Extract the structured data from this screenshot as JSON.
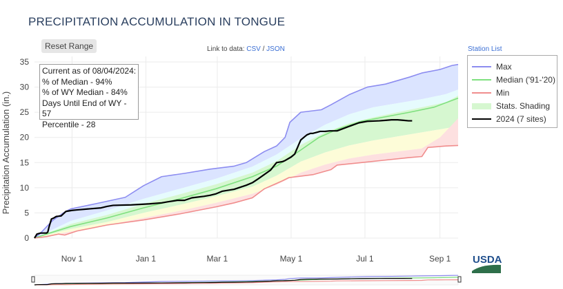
{
  "header": {
    "title": "PRECIPITATION ACCUMULATION IN TONGUE",
    "reset_label": "Reset Range",
    "link_prefix": "Link to data:",
    "csv_label": "CSV",
    "link_sep": "/",
    "json_label": "JSON",
    "station_list_label": "Station List"
  },
  "infobox": {
    "lines": [
      "Current as of 08/04/2024:",
      "% of Median - 94%",
      "% of WY Median - 84%",
      "Days Until End of WY - 57",
      "Percentile - 28"
    ]
  },
  "legend": {
    "max": "Max",
    "median": "Median ('91-'20)",
    "min": "Min",
    "shading": "Stats. Shading",
    "current": "2024 (7 sites)"
  },
  "logo_text": "USDA",
  "colors": {
    "max": "#8c8cf0",
    "median": "#7ee07e",
    "min": "#f08c8c",
    "current": "#000000",
    "band_max": "#dbe4ff",
    "band_upper": "#e6fbfd",
    "band_mid": "#d6f7d0",
    "band_lower": "#fdfcd8",
    "band_min": "#fde0e0",
    "grid": "#ebebeb",
    "usda_green": "#2e6f4a",
    "usda_blue": "#1f4e8c"
  },
  "chart_data": {
    "type": "area",
    "ylabel": "Precipitation Accumulation (in.)",
    "xlabel": "",
    "x_unit": "day of water year (0 = Oct 1)",
    "xlim": [
      0,
      350
    ],
    "ylim": [
      0,
      35
    ],
    "y_ticks": [
      0,
      5,
      10,
      15,
      20,
      25,
      30,
      35
    ],
    "x_ticks": [
      {
        "day": 31,
        "label": "Nov  1"
      },
      {
        "day": 92,
        "label": "Jan  1"
      },
      {
        "day": 151,
        "label": "Mar  1"
      },
      {
        "day": 212,
        "label": "May  1"
      },
      {
        "day": 273,
        "label": "Jul  1"
      },
      {
        "day": 335,
        "label": "Sep  1"
      }
    ],
    "grid": true,
    "legend_position": "right",
    "series": [
      {
        "name": "Max",
        "x": [
          0,
          5,
          15,
          25,
          30,
          50,
          75,
          90,
          105,
          125,
          145,
          165,
          175,
          190,
          200,
          207,
          211,
          220,
          237,
          245,
          260,
          275,
          290,
          310,
          320,
          335,
          345,
          350
        ],
        "y": [
          0,
          1,
          3.5,
          5.2,
          5.8,
          6.8,
          8.1,
          10.4,
          12.2,
          12.9,
          13.7,
          14.3,
          15,
          17.2,
          18.3,
          20,
          23,
          25,
          25.5,
          26.5,
          28.5,
          30,
          30.6,
          32,
          32.8,
          33.5,
          34.3,
          34.5
        ]
      },
      {
        "name": "Median ('91-'20)",
        "x": [
          0,
          10,
          30,
          60,
          90,
          120,
          150,
          180,
          200,
          220,
          235,
          250,
          270,
          290,
          310,
          330,
          350
        ],
        "y": [
          0,
          0.8,
          2.3,
          4,
          6,
          7.8,
          9.8,
          12.2,
          14.3,
          17.5,
          20,
          21.6,
          23.2,
          24.1,
          25,
          26,
          27.8
        ]
      },
      {
        "name": "Min",
        "x": [
          0,
          10,
          20,
          25,
          35,
          60,
          90,
          120,
          150,
          165,
          180,
          190,
          205,
          210,
          230,
          245,
          250,
          270,
          290,
          310,
          320,
          325,
          340,
          350
        ],
        "y": [
          0,
          0.3,
          0.8,
          0.6,
          1.4,
          2.6,
          3.6,
          4.8,
          6.2,
          7,
          8,
          9.8,
          11.4,
          12,
          12.6,
          13.6,
          14.5,
          15,
          15.5,
          16,
          16.2,
          18,
          18.3,
          18.4
        ]
      },
      {
        "name": "2024 (7 sites)",
        "x": [
          0,
          2,
          5,
          10,
          11,
          12,
          14,
          16,
          18,
          22,
          26,
          31,
          35,
          45,
          55,
          60,
          65,
          80,
          95,
          105,
          110,
          118,
          124,
          130,
          140,
          145,
          150,
          155,
          165,
          175,
          180,
          185,
          195,
          200,
          205,
          207,
          212,
          215,
          218,
          220,
          225,
          228,
          230,
          233,
          236,
          240,
          244,
          250,
          260,
          268,
          275,
          285,
          290,
          295,
          300,
          305,
          309,
          312
        ],
        "y": [
          0,
          0.8,
          1,
          1,
          1.2,
          2.2,
          3.8,
          4,
          4.3,
          4.4,
          5.3,
          5.5,
          5.6,
          5.8,
          6,
          6.3,
          6.5,
          6.6,
          6.8,
          7,
          7.2,
          7.5,
          7.5,
          8,
          8.3,
          8.5,
          8.8,
          9.3,
          9.7,
          10.5,
          11,
          11.8,
          13.5,
          15,
          15.2,
          15.4,
          16.1,
          16.7,
          18.4,
          19.5,
          20.5,
          20.8,
          20.8,
          21,
          21.2,
          21.2,
          21.3,
          21.3,
          22.2,
          22.9,
          23.2,
          23.3,
          23.4,
          23.5,
          23.5,
          23.4,
          23.3,
          23.3
        ]
      }
    ],
    "shading_bands": [
      {
        "name": "max band",
        "upper": [
          [
            0,
            0
          ],
          [
            5,
            1
          ],
          [
            15,
            3.5
          ],
          [
            25,
            5.2
          ],
          [
            30,
            5.8
          ],
          [
            50,
            6.8
          ],
          [
            75,
            8.1
          ],
          [
            90,
            10.4
          ],
          [
            105,
            12.2
          ],
          [
            125,
            12.9
          ],
          [
            145,
            13.7
          ],
          [
            165,
            14.3
          ],
          [
            175,
            15
          ],
          [
            190,
            17.2
          ],
          [
            200,
            18.3
          ],
          [
            207,
            20
          ],
          [
            211,
            23
          ],
          [
            220,
            25
          ],
          [
            237,
            25.5
          ],
          [
            245,
            26.5
          ],
          [
            260,
            28.5
          ],
          [
            275,
            30
          ],
          [
            290,
            30.6
          ],
          [
            310,
            32
          ],
          [
            320,
            32.8
          ],
          [
            335,
            33.5
          ],
          [
            345,
            34.3
          ],
          [
            350,
            34.5
          ]
        ],
        "lower": [
          [
            0,
            0
          ],
          [
            30,
            3.4
          ],
          [
            60,
            5.5
          ],
          [
            90,
            7.8
          ],
          [
            120,
            9.8
          ],
          [
            150,
            11.8
          ],
          [
            180,
            14.2
          ],
          [
            200,
            16.6
          ],
          [
            220,
            19.8
          ],
          [
            240,
            22.5
          ],
          [
            260,
            24.6
          ],
          [
            280,
            26
          ],
          [
            300,
            26.8
          ],
          [
            320,
            27.6
          ],
          [
            340,
            28.6
          ],
          [
            350,
            29.5
          ]
        ]
      },
      {
        "name": "upper band",
        "upper": [
          [
            0,
            0
          ],
          [
            30,
            3.4
          ],
          [
            60,
            5.5
          ],
          [
            90,
            7.8
          ],
          [
            120,
            9.8
          ],
          [
            150,
            11.8
          ],
          [
            180,
            14.2
          ],
          [
            200,
            16.6
          ],
          [
            220,
            19.8
          ],
          [
            240,
            22.5
          ],
          [
            260,
            24.6
          ],
          [
            280,
            26
          ],
          [
            300,
            26.8
          ],
          [
            320,
            27.6
          ],
          [
            340,
            28.6
          ],
          [
            350,
            29.5
          ]
        ],
        "lower": [
          [
            0,
            0
          ],
          [
            30,
            2.8
          ],
          [
            60,
            4.6
          ],
          [
            90,
            6.8
          ],
          [
            120,
            8.7
          ],
          [
            150,
            10.7
          ],
          [
            180,
            13
          ],
          [
            200,
            15.3
          ],
          [
            220,
            18.5
          ],
          [
            240,
            21
          ],
          [
            260,
            22.8
          ],
          [
            280,
            24
          ],
          [
            300,
            25
          ],
          [
            320,
            26
          ],
          [
            340,
            27
          ],
          [
            350,
            28.3
          ]
        ]
      },
      {
        "name": "mid band",
        "upper": [
          [
            0,
            0
          ],
          [
            30,
            2.8
          ],
          [
            60,
            4.6
          ],
          [
            90,
            6.8
          ],
          [
            120,
            8.7
          ],
          [
            150,
            10.7
          ],
          [
            180,
            13
          ],
          [
            200,
            15.3
          ],
          [
            220,
            18.5
          ],
          [
            240,
            21
          ],
          [
            260,
            22.8
          ],
          [
            280,
            24
          ],
          [
            300,
            25
          ],
          [
            320,
            26
          ],
          [
            340,
            27
          ],
          [
            350,
            28.3
          ]
        ],
        "lower": [
          [
            0,
            0
          ],
          [
            30,
            1.8
          ],
          [
            60,
            3.2
          ],
          [
            90,
            5
          ],
          [
            120,
            6.6
          ],
          [
            150,
            8.3
          ],
          [
            180,
            10.2
          ],
          [
            200,
            12.4
          ],
          [
            220,
            15.2
          ],
          [
            240,
            17
          ],
          [
            260,
            18.4
          ],
          [
            280,
            19.4
          ],
          [
            300,
            20.2
          ],
          [
            320,
            21
          ],
          [
            340,
            21.8
          ],
          [
            350,
            22.2
          ]
        ]
      },
      {
        "name": "lower band",
        "upper": [
          [
            0,
            0
          ],
          [
            30,
            1.8
          ],
          [
            60,
            3.2
          ],
          [
            90,
            5
          ],
          [
            120,
            6.6
          ],
          [
            150,
            8.3
          ],
          [
            180,
            10.2
          ],
          [
            200,
            12.4
          ],
          [
            220,
            15.2
          ],
          [
            240,
            17
          ],
          [
            260,
            18.4
          ],
          [
            280,
            19.4
          ],
          [
            300,
            20.2
          ],
          [
            320,
            21
          ],
          [
            340,
            21.8
          ],
          [
            350,
            22.2
          ]
        ],
        "lower": [
          [
            0,
            0
          ],
          [
            30,
            1.3
          ],
          [
            60,
            2.6
          ],
          [
            90,
            4
          ],
          [
            120,
            5.4
          ],
          [
            150,
            7
          ],
          [
            180,
            8.8
          ],
          [
            200,
            10.6
          ],
          [
            220,
            13
          ],
          [
            240,
            14.6
          ],
          [
            260,
            15.8
          ],
          [
            280,
            16.6
          ],
          [
            300,
            17.2
          ],
          [
            320,
            17.8
          ],
          [
            340,
            18.4
          ],
          [
            350,
            19
          ]
        ]
      },
      {
        "name": "min band",
        "upper": [
          [
            0,
            0
          ],
          [
            30,
            1.3
          ],
          [
            60,
            2.6
          ],
          [
            90,
            4
          ],
          [
            120,
            5.4
          ],
          [
            150,
            7
          ],
          [
            180,
            8.8
          ],
          [
            200,
            10.6
          ],
          [
            220,
            13
          ],
          [
            240,
            14.6
          ],
          [
            260,
            15.8
          ],
          [
            280,
            16.6
          ],
          [
            300,
            17.2
          ],
          [
            320,
            17.8
          ],
          [
            335,
            20
          ],
          [
            345,
            22.5
          ],
          [
            350,
            23.8
          ]
        ],
        "lower": [
          [
            0,
            0
          ],
          [
            10,
            0.3
          ],
          [
            20,
            0.8
          ],
          [
            25,
            0.6
          ],
          [
            35,
            1.4
          ],
          [
            60,
            2.6
          ],
          [
            90,
            3.6
          ],
          [
            120,
            4.8
          ],
          [
            150,
            6.2
          ],
          [
            165,
            7
          ],
          [
            180,
            8
          ],
          [
            190,
            9.8
          ],
          [
            205,
            11.4
          ],
          [
            210,
            12
          ],
          [
            230,
            12.6
          ],
          [
            245,
            13.6
          ],
          [
            250,
            14.5
          ],
          [
            270,
            15
          ],
          [
            290,
            15.5
          ],
          [
            310,
            16
          ],
          [
            320,
            16.2
          ],
          [
            325,
            18
          ],
          [
            340,
            18.3
          ],
          [
            350,
            18.4
          ]
        ]
      }
    ]
  }
}
